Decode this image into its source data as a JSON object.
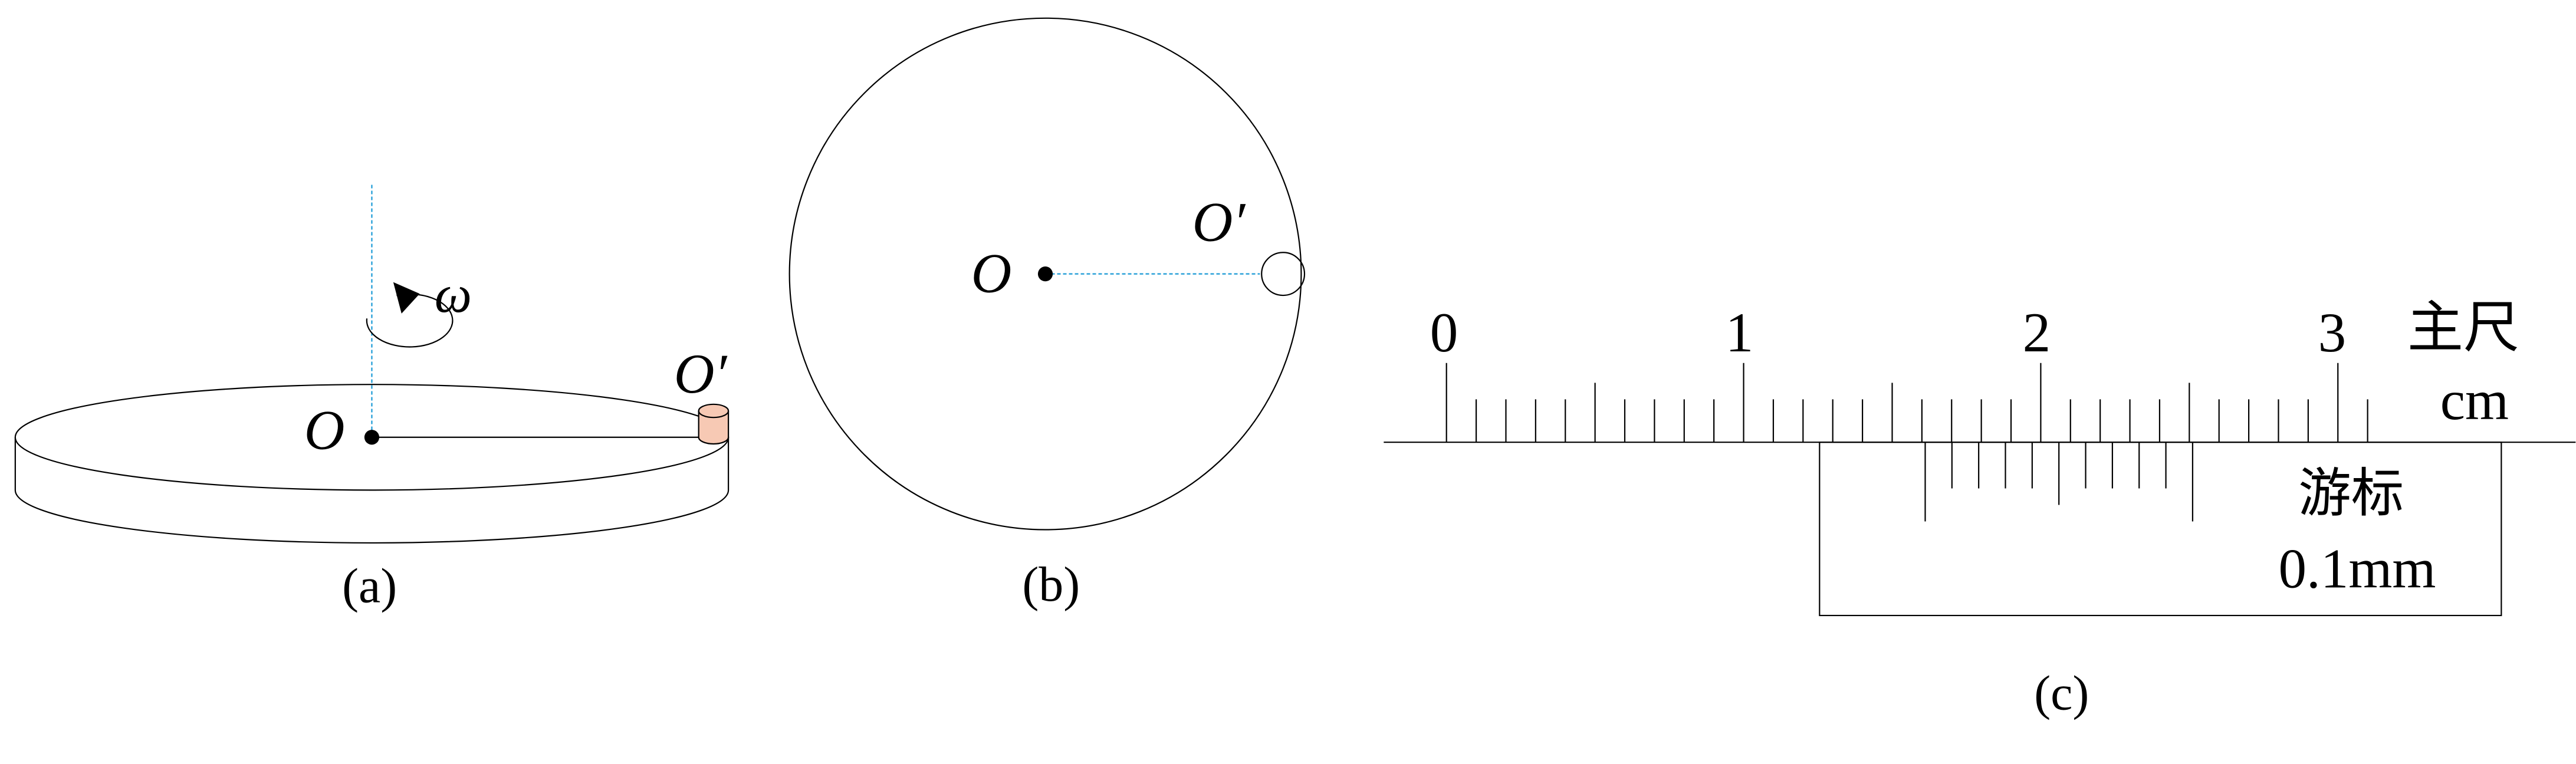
{
  "panels": {
    "a": {
      "caption": "(a)",
      "center_label": "O",
      "object_label": "O′",
      "omega_label": "ω",
      "colors": {
        "axis": "#1a9ad6",
        "stroke": "#000000",
        "object_fill": "#f7c9b4"
      }
    },
    "b": {
      "caption": "(b)",
      "center_label": "O",
      "object_label": "O′",
      "colors": {
        "radius_line": "#1a9ad6"
      }
    },
    "c": {
      "caption": "(c)",
      "main_scale_label": "主尺",
      "main_scale_unit": "cm",
      "main_scale_numbers": [
        "0",
        "1",
        "2",
        "3"
      ],
      "vernier_label": "游标",
      "vernier_precision": "0.1mm",
      "vernier_divisions": 10
    }
  }
}
